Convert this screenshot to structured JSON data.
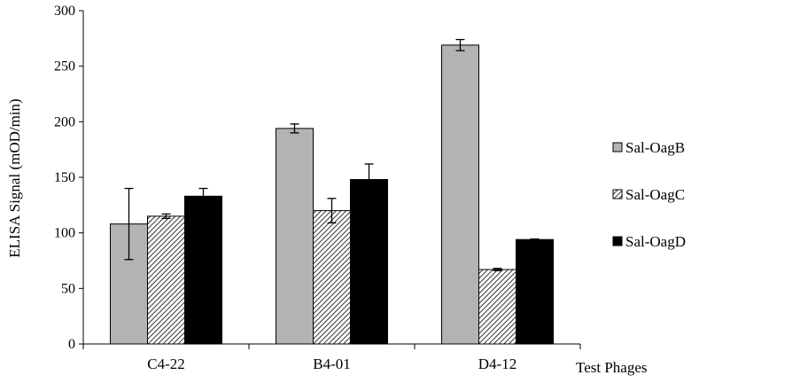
{
  "chart_data": {
    "type": "bar",
    "title": "",
    "xlabel": "Test Phages",
    "ylabel": "ELISA Signal  (mOD/min)",
    "ylim": [
      0,
      300
    ],
    "yticks": [
      0,
      50,
      100,
      150,
      200,
      250,
      300
    ],
    "categories": [
      "C4-22",
      "B4-01",
      "D4-12"
    ],
    "grid": false,
    "legend_position": "right",
    "series": [
      {
        "name": "Sal-OagB",
        "fill": "gray",
        "color": "#b3b3b3",
        "values": [
          108,
          194,
          269
        ],
        "errors": [
          32,
          4,
          5
        ]
      },
      {
        "name": "Sal-OagC",
        "fill": "hatched",
        "color": "#ffffff",
        "values": [
          115,
          120,
          67
        ],
        "errors": [
          2,
          11,
          1
        ]
      },
      {
        "name": "Sal-OagD",
        "fill": "black",
        "color": "#000000",
        "values": [
          133,
          148,
          94
        ],
        "errors": [
          7,
          14,
          0.5
        ]
      }
    ]
  }
}
